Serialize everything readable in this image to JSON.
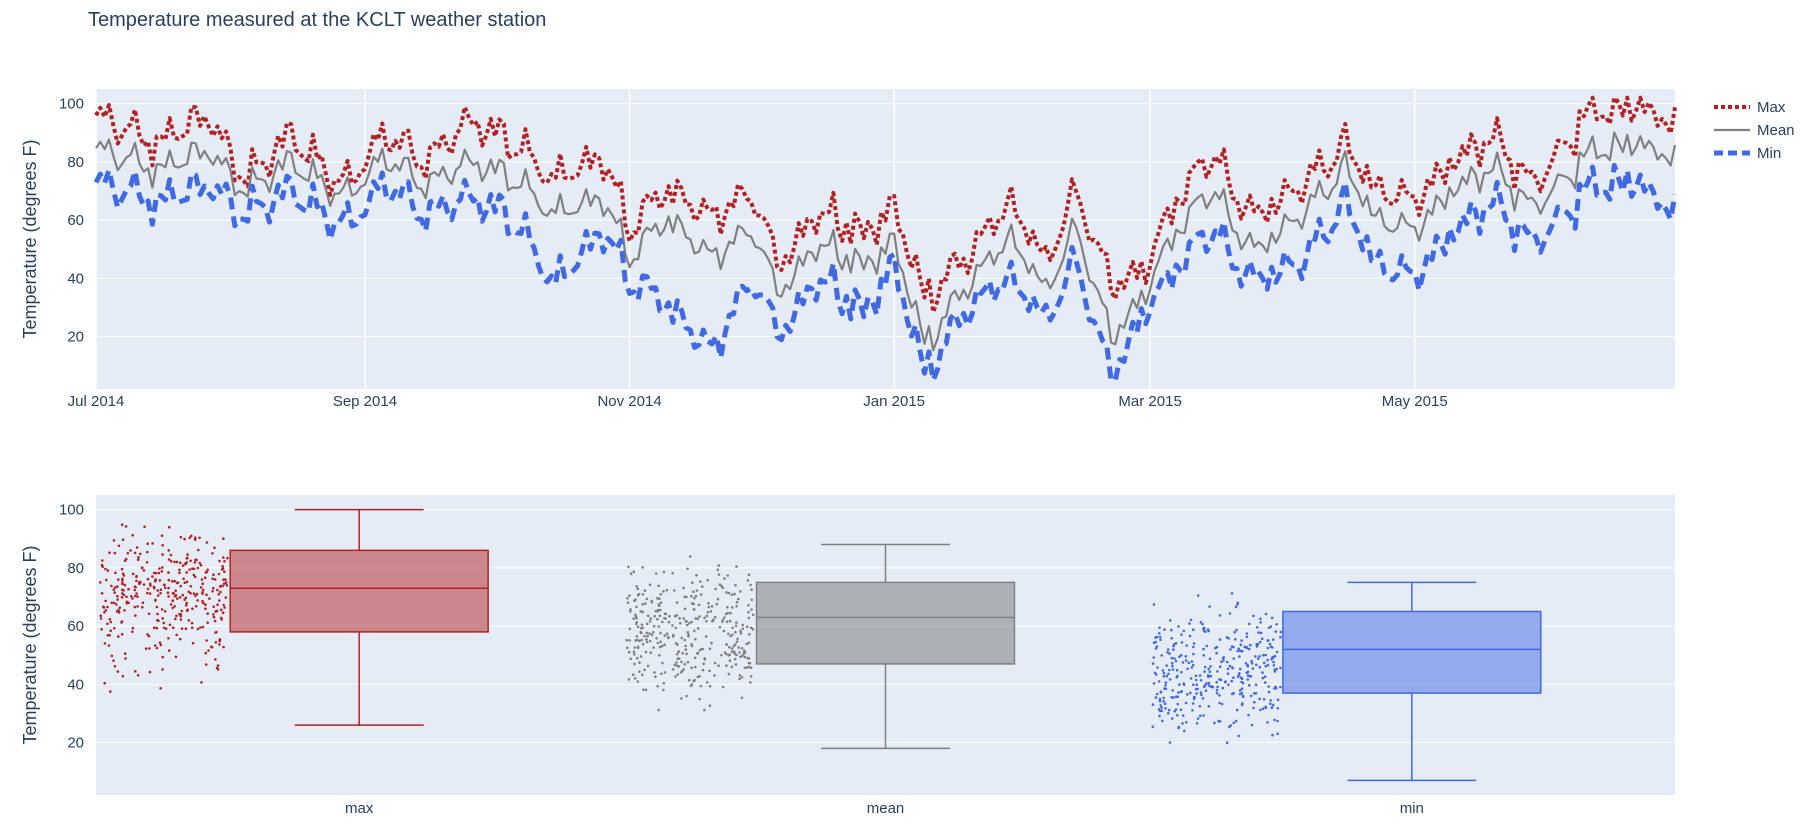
{
  "title": "Temperature measured at the KCLT weather station",
  "colors": {
    "max": "#b22222",
    "mean": "#808080",
    "min": "#4169e1",
    "plot_bg": "#e5ecf6",
    "grid": "#ffffff",
    "text": "#2a3f5f"
  },
  "legend": {
    "position": "top-right",
    "items": [
      "Max",
      "Mean",
      "Min"
    ]
  },
  "chart_data": [
    {
      "type": "line",
      "title": "Temperature measured at the KCLT weather station",
      "xlabel": "",
      "ylabel": "Temperature (degrees F)",
      "x_range": [
        "2014-07-01",
        "2015-06-30"
      ],
      "ylim": [
        2,
        105
      ],
      "yticks": [
        20,
        40,
        60,
        80,
        100
      ],
      "xticks": [
        {
          "date": "2014-07-01",
          "label": "Jul 2014"
        },
        {
          "date": "2014-09-01",
          "label": "Sep 2014"
        },
        {
          "date": "2014-11-01",
          "label": "Nov 2014"
        },
        {
          "date": "2015-01-01",
          "label": "Jan 2015"
        },
        {
          "date": "2015-03-01",
          "label": "Mar 2015"
        },
        {
          "date": "2015-05-01",
          "label": "May 2015"
        }
      ],
      "grid": true,
      "series": [
        {
          "name": "Max",
          "style": "dot",
          "points": [
            [
              "2014-07-01",
              95
            ],
            [
              "2014-07-15",
              86
            ],
            [
              "2014-07-26",
              96
            ],
            [
              "2014-08-05",
              74
            ],
            [
              "2014-08-15",
              89
            ],
            [
              "2014-08-27",
              72
            ],
            [
              "2014-09-05",
              90
            ],
            [
              "2014-09-15",
              80
            ],
            [
              "2014-09-25",
              94
            ],
            [
              "2014-10-05",
              86
            ],
            [
              "2014-10-15",
              74
            ],
            [
              "2014-10-25",
              82
            ],
            [
              "2014-11-01",
              58
            ],
            [
              "2014-11-10",
              70
            ],
            [
              "2014-11-20",
              62
            ],
            [
              "2014-11-30",
              68
            ],
            [
              "2014-12-05",
              46
            ],
            [
              "2014-12-15",
              63
            ],
            [
              "2014-12-25",
              55
            ],
            [
              "2015-01-01",
              64
            ],
            [
              "2015-01-08",
              34
            ],
            [
              "2015-01-18",
              48
            ],
            [
              "2015-01-28",
              66
            ],
            [
              "2015-02-05",
              46
            ],
            [
              "2015-02-12",
              68
            ],
            [
              "2015-02-20",
              38
            ],
            [
              "2015-02-28",
              42
            ],
            [
              "2015-03-05",
              62
            ],
            [
              "2015-03-15",
              82
            ],
            [
              "2015-03-25",
              62
            ],
            [
              "2015-04-05",
              72
            ],
            [
              "2015-04-15",
              86
            ],
            [
              "2015-04-22",
              70
            ],
            [
              "2015-05-01",
              66
            ],
            [
              "2015-05-10",
              82
            ],
            [
              "2015-05-20",
              86
            ],
            [
              "2015-05-28",
              72
            ],
            [
              "2015-06-10",
              96
            ],
            [
              "2015-06-20",
              100
            ],
            [
              "2015-06-30",
              94
            ]
          ]
        },
        {
          "name": "Mean",
          "style": "solid",
          "points": [
            [
              "2014-07-01",
              84
            ],
            [
              "2014-07-15",
              77
            ],
            [
              "2014-07-26",
              84
            ],
            [
              "2014-08-05",
              70
            ],
            [
              "2014-08-15",
              80
            ],
            [
              "2014-08-27",
              68
            ],
            [
              "2014-09-05",
              82
            ],
            [
              "2014-09-15",
              72
            ],
            [
              "2014-09-25",
              80
            ],
            [
              "2014-10-05",
              74
            ],
            [
              "2014-10-15",
              62
            ],
            [
              "2014-10-25",
              68
            ],
            [
              "2014-11-01",
              48
            ],
            [
              "2014-11-10",
              60
            ],
            [
              "2014-11-20",
              48
            ],
            [
              "2014-11-30",
              56
            ],
            [
              "2014-12-05",
              36
            ],
            [
              "2014-12-15",
              52
            ],
            [
              "2014-12-25",
              44
            ],
            [
              "2015-01-01",
              52
            ],
            [
              "2015-01-08",
              18
            ],
            [
              "2015-01-18",
              38
            ],
            [
              "2015-01-28",
              54
            ],
            [
              "2015-02-05",
              36
            ],
            [
              "2015-02-12",
              56
            ],
            [
              "2015-02-20",
              20
            ],
            [
              "2015-02-28",
              34
            ],
            [
              "2015-03-05",
              52
            ],
            [
              "2015-03-15",
              70
            ],
            [
              "2015-03-25",
              50
            ],
            [
              "2015-04-05",
              62
            ],
            [
              "2015-04-15",
              78
            ],
            [
              "2015-04-22",
              60
            ],
            [
              "2015-05-01",
              56
            ],
            [
              "2015-05-10",
              72
            ],
            [
              "2015-05-20",
              76
            ],
            [
              "2015-05-28",
              64
            ],
            [
              "2015-06-10",
              82
            ],
            [
              "2015-06-20",
              87
            ],
            [
              "2015-06-30",
              82
            ]
          ]
        },
        {
          "name": "Min",
          "style": "dash",
          "points": [
            [
              "2014-07-01",
              72
            ],
            [
              "2014-07-15",
              66
            ],
            [
              "2014-07-26",
              72
            ],
            [
              "2014-08-05",
              62
            ],
            [
              "2014-08-15",
              70
            ],
            [
              "2014-08-27",
              58
            ],
            [
              "2014-09-05",
              73
            ],
            [
              "2014-09-15",
              62
            ],
            [
              "2014-09-25",
              68
            ],
            [
              "2014-10-05",
              60
            ],
            [
              "2014-10-15",
              38
            ],
            [
              "2014-10-25",
              56
            ],
            [
              "2014-11-01",
              40
            ],
            [
              "2014-11-10",
              30
            ],
            [
              "2014-11-20",
              16
            ],
            [
              "2014-11-30",
              40
            ],
            [
              "2014-12-05",
              22
            ],
            [
              "2014-12-15",
              40
            ],
            [
              "2014-12-25",
              28
            ],
            [
              "2015-01-01",
              44
            ],
            [
              "2015-01-08",
              8
            ],
            [
              "2015-01-18",
              30
            ],
            [
              "2015-01-28",
              40
            ],
            [
              "2015-02-05",
              26
            ],
            [
              "2015-02-12",
              44
            ],
            [
              "2015-02-20",
              6
            ],
            [
              "2015-02-28",
              28
            ],
            [
              "2015-03-05",
              40
            ],
            [
              "2015-03-15",
              56
            ],
            [
              "2015-03-25",
              40
            ],
            [
              "2015-04-05",
              46
            ],
            [
              "2015-04-15",
              66
            ],
            [
              "2015-04-22",
              44
            ],
            [
              "2015-05-01",
              40
            ],
            [
              "2015-05-10",
              58
            ],
            [
              "2015-05-20",
              64
            ],
            [
              "2015-05-28",
              52
            ],
            [
              "2015-06-10",
              70
            ],
            [
              "2015-06-20",
              74
            ],
            [
              "2015-06-30",
              64
            ]
          ]
        }
      ]
    },
    {
      "type": "box",
      "xlabel": "",
      "ylabel": "Temperature (degrees F)",
      "ylim": [
        2,
        105
      ],
      "yticks": [
        20,
        40,
        60,
        80,
        100
      ],
      "grid": true,
      "categories": [
        "max",
        "mean",
        "min"
      ],
      "boxes": [
        {
          "name": "max",
          "min": 26,
          "q1": 58,
          "median": 73,
          "q3": 86,
          "max": 100,
          "points_range": [
            26,
            100
          ]
        },
        {
          "name": "mean",
          "min": 18,
          "q1": 47,
          "median": 63,
          "q3": 75,
          "max": 88,
          "points_range": [
            18,
            88
          ]
        },
        {
          "name": "min",
          "min": 7,
          "q1": 37,
          "median": 52,
          "q3": 65,
          "max": 75,
          "points_range": [
            7,
            75
          ]
        }
      ]
    }
  ]
}
